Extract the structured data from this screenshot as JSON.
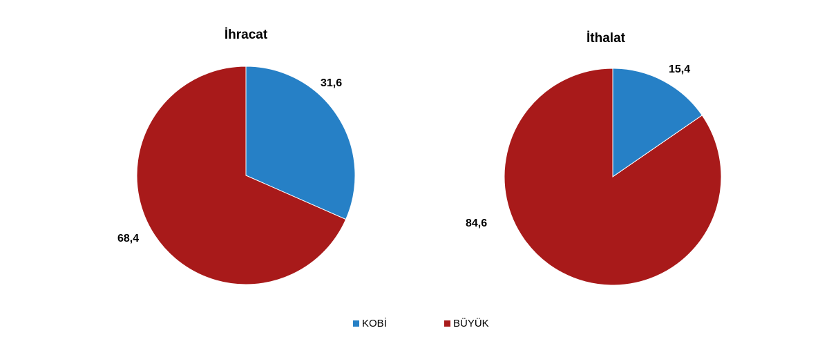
{
  "colors": {
    "kobi": "#2680c6",
    "buyuk": "#a81a1a"
  },
  "legend": {
    "kobi_label": "KOBİ",
    "buyuk_label": "BÜYÜK"
  },
  "chart_data": [
    {
      "type": "pie",
      "title": "İhracat",
      "categories": [
        "KOBİ",
        "BÜYÜK"
      ],
      "values": [
        31.6,
        68.4
      ],
      "labels": [
        "31,6",
        "68,4"
      ]
    },
    {
      "type": "pie",
      "title": "İthalat",
      "categories": [
        "KOBİ",
        "BÜYÜK"
      ],
      "values": [
        15.4,
        84.6
      ],
      "labels": [
        "15,4",
        "84,6"
      ]
    }
  ]
}
